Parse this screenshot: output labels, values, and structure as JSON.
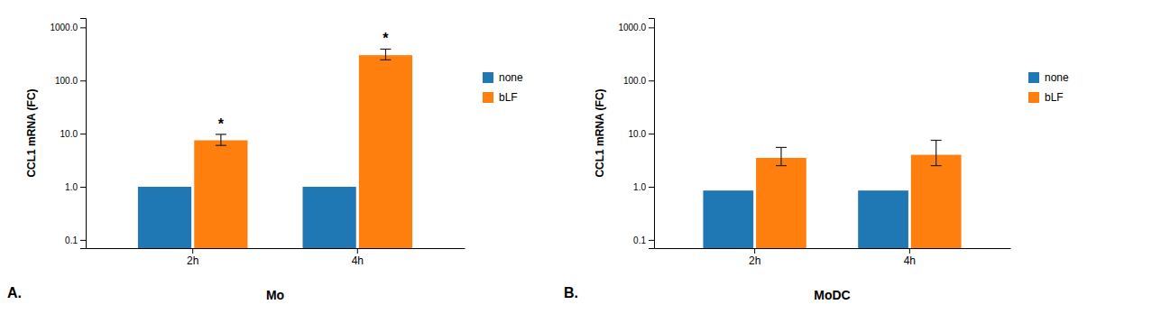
{
  "chart_data": [
    {
      "type": "bar",
      "title": "A.",
      "x_label": "Mo",
      "y_label": "CCL1 mRNA (FC)",
      "categories": [
        "2h",
        "4h"
      ],
      "series": [
        {
          "name": "none",
          "values": [
            1.0,
            1.0
          ]
        },
        {
          "name": "bLF",
          "values": [
            7.5,
            300.0
          ],
          "errors_upper": [
            2.2,
            90.0
          ],
          "errors_lower": [
            1.5,
            55.0
          ],
          "annotations": [
            "*",
            "*"
          ]
        }
      ],
      "ylim": [
        0.07,
        1500.0
      ],
      "yticks": [
        0.1,
        {
          "value": 1.0,
          "label": "1.0"
        },
        {
          "value": 10.0,
          "label": "10.0"
        },
        {
          "value": 100.0,
          "label": "100.0"
        },
        {
          "value": 1000.0,
          "label": "1000.0"
        }
      ],
      "log": "y",
      "grid": false,
      "legend": "right"
    },
    {
      "type": "bar",
      "title": "B.",
      "x_label": "MoDC",
      "y_label": "CCL1 mRNA (FC)",
      "categories": [
        "2h",
        "4h"
      ],
      "series": [
        {
          "name": "none",
          "values": [
            0.85,
            0.85
          ]
        },
        {
          "name": "bLF",
          "values": [
            3.5,
            4.0
          ],
          "errors_upper": [
            2.0,
            3.5
          ],
          "errors_lower": [
            1.0,
            1.5
          ]
        }
      ],
      "ylim": [
        0.07,
        1500.0
      ],
      "yticks": [
        0.1,
        {
          "value": 1.0,
          "label": "1.0"
        },
        {
          "value": 10.0,
          "label": "10.0"
        },
        {
          "value": 100.0,
          "label": "100.0"
        },
        {
          "value": 1000.0,
          "label": "1000.0"
        }
      ],
      "log": "y",
      "grid": false,
      "legend": "right"
    }
  ]
}
